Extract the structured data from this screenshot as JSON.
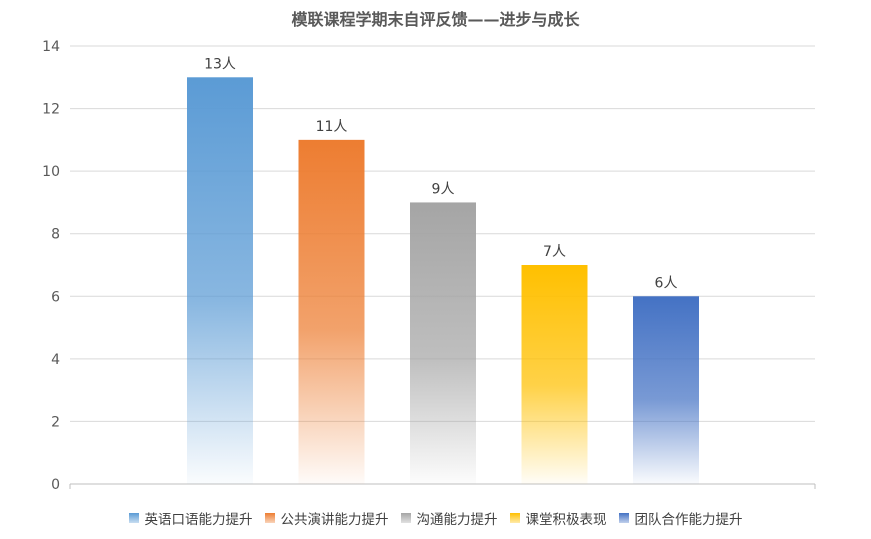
{
  "chart_data": {
    "type": "bar",
    "title": "模联课程学期末自评反馈——进步与成长",
    "categories": [
      "英语口语能力提升",
      "公共演讲能力提升",
      "沟通能力提升",
      "课堂积极表现",
      "团队合作能力提升"
    ],
    "values": [
      13,
      11,
      9,
      7,
      6
    ],
    "data_labels": [
      "13人",
      "11人",
      "9人",
      "7人",
      "6人"
    ],
    "colors": [
      "#5B9BD5",
      "#ED7D31",
      "#A5A5A5",
      "#FFC000",
      "#4472C4"
    ],
    "ylim": [
      0,
      14
    ],
    "yticks": [
      "0",
      "2",
      "4",
      "6",
      "8",
      "10",
      "12",
      "14"
    ],
    "xlabel": "",
    "ylabel": "",
    "grid": true,
    "legend_position": "bottom"
  }
}
